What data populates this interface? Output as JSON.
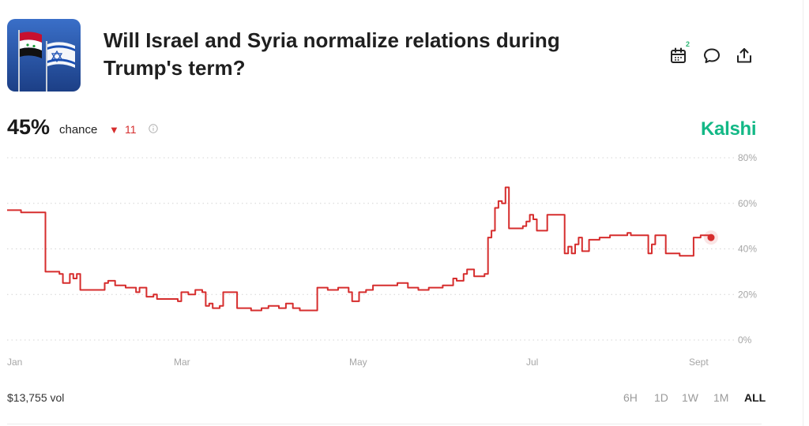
{
  "header": {
    "title_line1": "Will Israel and Syria normalize relations during",
    "title_line2": "Trump's term?",
    "calendar_badge": "2"
  },
  "summary": {
    "percent": "45%",
    "chance_label": "chance",
    "delta_value": "11",
    "delta_direction": "down",
    "brand": "Kalshi"
  },
  "footer": {
    "volume": "$13,755 vol",
    "ranges": [
      "6H",
      "1D",
      "1W",
      "1M",
      "ALL"
    ],
    "active_range": "ALL"
  },
  "colors": {
    "line": "#d62d2d",
    "brand": "#13b886",
    "negative": "#d62d2d"
  },
  "icons": [
    "calendar-icon",
    "comment-icon",
    "share-icon",
    "info-icon",
    "triangle-down-icon"
  ],
  "chart_data": {
    "type": "line",
    "x_ticks": [
      "Jan",
      "Mar",
      "May",
      "Jul",
      "Sept"
    ],
    "y_ticks": [
      "80%",
      "60%",
      "40%",
      "20%",
      "0%"
    ],
    "ylim": [
      0,
      80
    ],
    "grid": true,
    "series": [
      {
        "values": [
          [
            0,
            57
          ],
          [
            4,
            56
          ],
          [
            9,
            56
          ],
          [
            11,
            30
          ],
          [
            15,
            29
          ],
          [
            16,
            25
          ],
          [
            18,
            29
          ],
          [
            19,
            27
          ],
          [
            20,
            29
          ],
          [
            21,
            22
          ],
          [
            27,
            22
          ],
          [
            28,
            25
          ],
          [
            29,
            26
          ],
          [
            31,
            24
          ],
          [
            34,
            23
          ],
          [
            37,
            21
          ],
          [
            38,
            23
          ],
          [
            40,
            19
          ],
          [
            42,
            20
          ],
          [
            43,
            18
          ],
          [
            46,
            18
          ],
          [
            49,
            17
          ],
          [
            50,
            21
          ],
          [
            52,
            20
          ],
          [
            54,
            22
          ],
          [
            56,
            21
          ],
          [
            57,
            15
          ],
          [
            58,
            16
          ],
          [
            59,
            14
          ],
          [
            61,
            15
          ],
          [
            62,
            21
          ],
          [
            65,
            21
          ],
          [
            66,
            14
          ],
          [
            67,
            14
          ],
          [
            70,
            13
          ],
          [
            73,
            14
          ],
          [
            75,
            15
          ],
          [
            78,
            14
          ],
          [
            80,
            16
          ],
          [
            82,
            14
          ],
          [
            84,
            13
          ],
          [
            88,
            13
          ],
          [
            89,
            23
          ],
          [
            92,
            22
          ],
          [
            95,
            23
          ],
          [
            98,
            21
          ],
          [
            99,
            17
          ],
          [
            100,
            17
          ],
          [
            101,
            21
          ],
          [
            103,
            22
          ],
          [
            105,
            24
          ],
          [
            109,
            24
          ],
          [
            112,
            25
          ],
          [
            115,
            23
          ],
          [
            118,
            22
          ],
          [
            121,
            23
          ],
          [
            125,
            24
          ],
          [
            126,
            24
          ],
          [
            128,
            27
          ],
          [
            129,
            26
          ],
          [
            131,
            29
          ],
          [
            132,
            31
          ],
          [
            134,
            28
          ],
          [
            137,
            29
          ],
          [
            138,
            45
          ],
          [
            139,
            48
          ],
          [
            140,
            58
          ],
          [
            141,
            61
          ],
          [
            142,
            60
          ],
          [
            143,
            67
          ],
          [
            144,
            49
          ],
          [
            148,
            50
          ],
          [
            149,
            52
          ],
          [
            150,
            55
          ],
          [
            151,
            53
          ],
          [
            152,
            48
          ],
          [
            154,
            48
          ],
          [
            155,
            55
          ],
          [
            159,
            55
          ],
          [
            160,
            38
          ],
          [
            161,
            41
          ],
          [
            162,
            38
          ],
          [
            163,
            42
          ],
          [
            164,
            45
          ],
          [
            165,
            39
          ],
          [
            167,
            44
          ],
          [
            170,
            45
          ],
          [
            173,
            46
          ],
          [
            176,
            46
          ],
          [
            178,
            47
          ],
          [
            179,
            46
          ],
          [
            181,
            46
          ],
          [
            182,
            46
          ],
          [
            184,
            38
          ],
          [
            185,
            42
          ],
          [
            186,
            46
          ],
          [
            188,
            46
          ],
          [
            189,
            38
          ],
          [
            193,
            37
          ],
          [
            196,
            37
          ],
          [
            197,
            45
          ],
          [
            199,
            46
          ],
          [
            202,
            45
          ]
        ]
      }
    ]
  }
}
